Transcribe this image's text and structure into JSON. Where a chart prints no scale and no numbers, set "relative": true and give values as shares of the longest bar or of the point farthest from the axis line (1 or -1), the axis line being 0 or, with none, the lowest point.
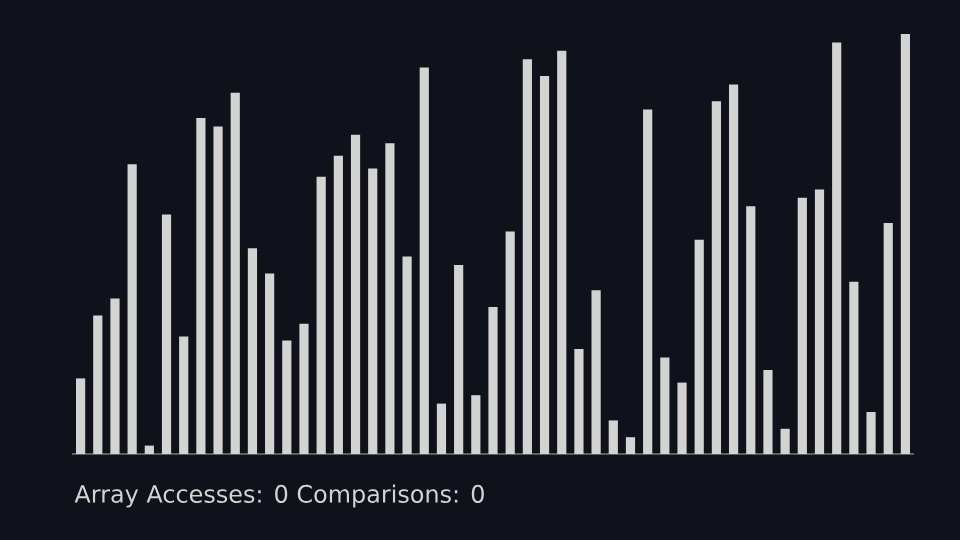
{
  "chart_data": {
    "type": "bar",
    "relative": true,
    "color": "#d3d3d3",
    "categories": [
      null,
      null,
      null,
      null,
      null,
      null,
      null,
      null,
      null,
      null,
      null,
      null,
      null,
      null,
      null,
      null,
      null,
      null,
      null,
      null,
      null,
      null,
      null,
      null,
      null,
      null,
      null,
      null,
      null,
      null,
      null,
      null,
      null,
      null,
      null,
      null,
      null,
      null,
      null,
      null,
      null,
      null,
      null,
      null,
      null,
      null,
      null,
      null,
      null
    ],
    "values": [
      0.18,
      0.33,
      0.37,
      0.69,
      0.02,
      0.57,
      0.28,
      0.8,
      0.78,
      0.86,
      0.49,
      0.43,
      0.27,
      0.31,
      0.66,
      0.71,
      0.76,
      0.68,
      0.74,
      0.47,
      0.92,
      0.12,
      0.45,
      0.14,
      0.35,
      0.53,
      0.94,
      0.9,
      0.96,
      0.25,
      0.39,
      0.08,
      0.04,
      0.82,
      0.23,
      0.17,
      0.51,
      0.84,
      0.88,
      0.59,
      0.2,
      0.06,
      0.61,
      0.63,
      0.98,
      0.41,
      0.1,
      0.55,
      1
    ],
    "annotations": [
      "Array Accesses: 0 Comparisons: 0"
    ]
  }
}
